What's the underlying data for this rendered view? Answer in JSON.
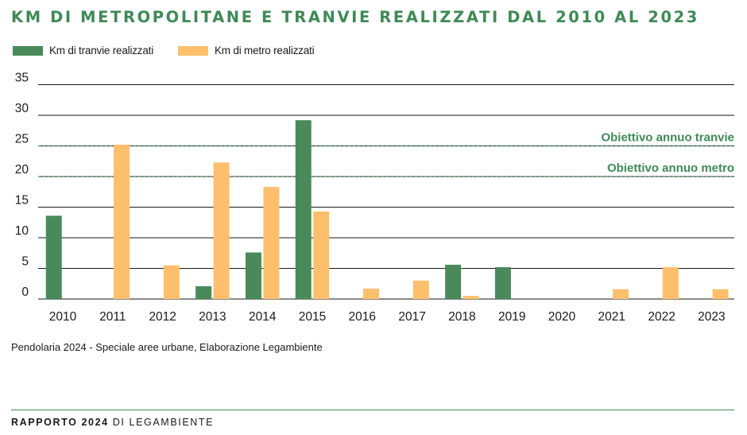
{
  "title": "KM DI METROPOLITANE E TRANVIE REALIZZATI DAL 2010 AL 2023",
  "colors": {
    "tram": "#4a8a5a",
    "metro": "#fdbf6b",
    "accent": "#3d8a55",
    "grid": "#1a1a1a"
  },
  "source": "Pendolaria 2024 - Speciale aree urbane, Elaborazione Legambiente",
  "footer": {
    "bold": "RAPPORTO 2024",
    "rest": "DI LEGAMBIENTE"
  },
  "chart_data": {
    "type": "bar",
    "title": "KM DI METROPOLITANE E TRANVIE REALIZZATI DAL 2010 AL 2023",
    "xlabel": "",
    "ylabel": "",
    "ylim": [
      0,
      35
    ],
    "yticks": [
      0,
      5,
      10,
      15,
      20,
      25,
      30,
      35
    ],
    "grid": true,
    "legend_position": "top-left",
    "categories": [
      "2010",
      "2011",
      "2012",
      "2013",
      "2014",
      "2015",
      "2016",
      "2017",
      "2018",
      "2019",
      "2020",
      "2021",
      "2022",
      "2023"
    ],
    "series": [
      {
        "name": "Km di tranvie realizzati",
        "color": "#4a8a5a",
        "values": [
          13.6,
          0,
          0,
          2.1,
          7.6,
          29.2,
          0,
          0,
          5.6,
          5.2,
          0,
          0,
          0,
          0
        ]
      },
      {
        "name": "Km di metro realizzati",
        "color": "#fdbf6b",
        "values": [
          0,
          25.2,
          5.5,
          22.3,
          18.3,
          14.3,
          1.7,
          3.0,
          0.5,
          0,
          0,
          1.6,
          5.2,
          1.6
        ]
      }
    ],
    "annotations": [
      {
        "label": "Obiettivo annuo tranvie",
        "y": 25
      },
      {
        "label": "Obiettivo annuo metro",
        "y": 20
      }
    ]
  }
}
